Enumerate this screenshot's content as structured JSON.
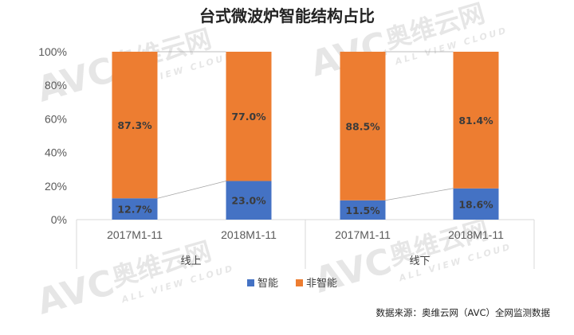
{
  "chart_data": {
    "type": "bar",
    "stacked": true,
    "percent_stacked": true,
    "title": "台式微波炉智能结构占比",
    "y_ticks": [
      "0%",
      "20%",
      "40%",
      "60%",
      "80%",
      "100%"
    ],
    "ylim": [
      0,
      100
    ],
    "groups": [
      {
        "label": "线上",
        "categories": [
          "2017M1-11",
          "2018M1-11"
        ]
      },
      {
        "label": "线下",
        "categories": [
          "2017M1-11",
          "2018M1-11"
        ]
      }
    ],
    "series": [
      {
        "name": "智能",
        "color": "#4472C4",
        "values": [
          12.7,
          23.0,
          11.5,
          18.6
        ],
        "labels": [
          "12.7%",
          "23.0%",
          "11.5%",
          "18.6%"
        ]
      },
      {
        "name": "非智能",
        "color": "#ED7D31",
        "values": [
          87.3,
          77.0,
          88.5,
          81.4
        ],
        "labels": [
          "87.3%",
          "77.0%",
          "88.5%",
          "81.4%"
        ]
      }
    ],
    "legend_position": "bottom",
    "grid": false
  },
  "source_note": "数据来源：奥维云网（AVC）全网监测数据",
  "watermark": {
    "brand": "AVC",
    "name": "奥维云网",
    "tagline": "ALL VIEW CLOUD"
  }
}
